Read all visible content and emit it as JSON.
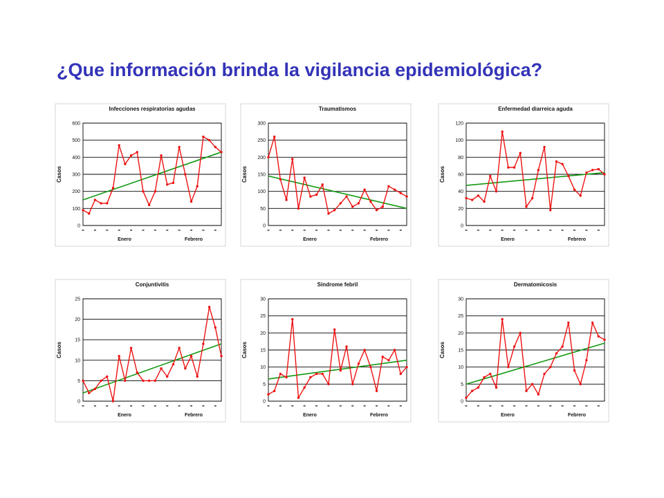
{
  "page": {
    "title": "¿Que información brinda la vigilancia epidemiológica?"
  },
  "colors": {
    "title": "#3333b8",
    "data_line": "#ee1111",
    "trend_line": "#119911",
    "grid": "#000000",
    "frame": "#bbbbbb"
  },
  "chart_data": [
    {
      "type": "line",
      "title": "Infecciones respiratorias agudas",
      "ylabel": "Casos",
      "ylim": [
        0,
        600
      ],
      "yticks": [
        0,
        100,
        200,
        300,
        400,
        500,
        600
      ],
      "month_labels": [
        "Enero",
        "Febrero"
      ],
      "grid": true,
      "series": [
        {
          "values": [
            90,
            70,
            150,
            130,
            130,
            220,
            470,
            360,
            410,
            430,
            200,
            120,
            200,
            410,
            240,
            250,
            460,
            300,
            140,
            230,
            520,
            500,
            460,
            430
          ]
        },
        {
          "values": [
            150,
            430
          ]
        }
      ]
    },
    {
      "type": "line",
      "title": "Traumatismos",
      "ylabel": "Casos",
      "ylim": [
        0,
        300
      ],
      "yticks": [
        0,
        50,
        100,
        150,
        200,
        250,
        300
      ],
      "month_labels": [
        "Enero",
        "Febrero"
      ],
      "grid": true,
      "series": [
        {
          "values": [
            200,
            260,
            135,
            75,
            195,
            50,
            140,
            85,
            90,
            120,
            35,
            45,
            65,
            85,
            55,
            65,
            105,
            70,
            45,
            55,
            115,
            105,
            95,
            85
          ]
        },
        {
          "values": [
            145,
            50
          ]
        }
      ]
    },
    {
      "type": "line",
      "title": "Enfermedad diarreica aguda",
      "ylabel": "Casos",
      "ylim": [
        0,
        120
      ],
      "yticks": [
        0,
        20,
        40,
        60,
        80,
        100,
        120
      ],
      "month_labels": [
        "Enero",
        "Febrero"
      ],
      "grid": true,
      "series": [
        {
          "values": [
            32,
            30,
            35,
            28,
            58,
            40,
            110,
            68,
            68,
            85,
            22,
            32,
            65,
            92,
            18,
            75,
            72,
            58,
            42,
            35,
            62,
            65,
            66,
            60
          ]
        },
        {
          "values": [
            47,
            62
          ]
        }
      ]
    },
    {
      "type": "line",
      "title": "Conjuntivitis",
      "ylabel": "Casos",
      "ylim": [
        0,
        25
      ],
      "yticks": [
        0,
        5,
        10,
        15,
        20,
        25
      ],
      "month_labels": [
        "Enero",
        "Febrero"
      ],
      "grid": true,
      "series": [
        {
          "values": [
            5,
            2,
            3,
            5,
            6,
            0,
            11,
            5,
            13,
            7,
            5,
            5,
            5,
            8,
            6,
            9,
            13,
            8,
            11,
            6,
            14,
            23,
            18,
            11
          ]
        },
        {
          "values": [
            2,
            14
          ]
        }
      ]
    },
    {
      "type": "line",
      "title": "Síndrome febril",
      "ylabel": "Casos",
      "ylim": [
        0,
        30
      ],
      "yticks": [
        0,
        5,
        10,
        15,
        20,
        25,
        30
      ],
      "month_labels": [
        "Enero",
        "Febrero"
      ],
      "grid": true,
      "series": [
        {
          "values": [
            2,
            3,
            8,
            7,
            24,
            1,
            4,
            7,
            8,
            8,
            5,
            21,
            9,
            16,
            5,
            11,
            15,
            10,
            3,
            13,
            12,
            15,
            8,
            10
          ]
        },
        {
          "values": [
            6.5,
            12
          ]
        }
      ]
    },
    {
      "type": "line",
      "title": "Dermatomicosis",
      "ylabel": "Casos",
      "ylim": [
        0,
        30
      ],
      "yticks": [
        0,
        5,
        10,
        15,
        20,
        25,
        30
      ],
      "month_labels": [
        "Enero",
        "Febrero"
      ],
      "grid": true,
      "series": [
        {
          "values": [
            1,
            3,
            4,
            7,
            8,
            4,
            24,
            10,
            16,
            20,
            3,
            5,
            2,
            8,
            10,
            14,
            16,
            23,
            9,
            5,
            12,
            23,
            19,
            18
          ]
        },
        {
          "values": [
            5,
            17
          ]
        }
      ]
    }
  ]
}
